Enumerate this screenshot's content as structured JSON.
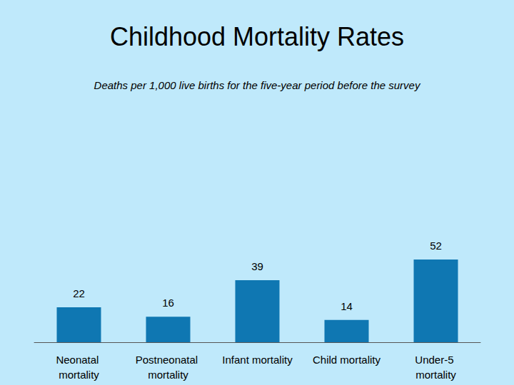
{
  "chart_data": {
    "type": "bar",
    "title": "Childhood Mortality Rates",
    "subtitle": "Deaths per 1,000 live births for the five-year period before the survey",
    "categories": [
      "Neonatal mortality",
      "Postneonatal mortality",
      "Infant mortality",
      "Child mortality",
      "Under-5 mortality"
    ],
    "values": [
      22,
      16,
      39,
      14,
      52
    ],
    "color": "#0f77b2",
    "ylim": [
      0,
      100
    ],
    "yticks": [
      0,
      100
    ],
    "grid": false,
    "data_labels": true,
    "tick_labels": "x"
  }
}
